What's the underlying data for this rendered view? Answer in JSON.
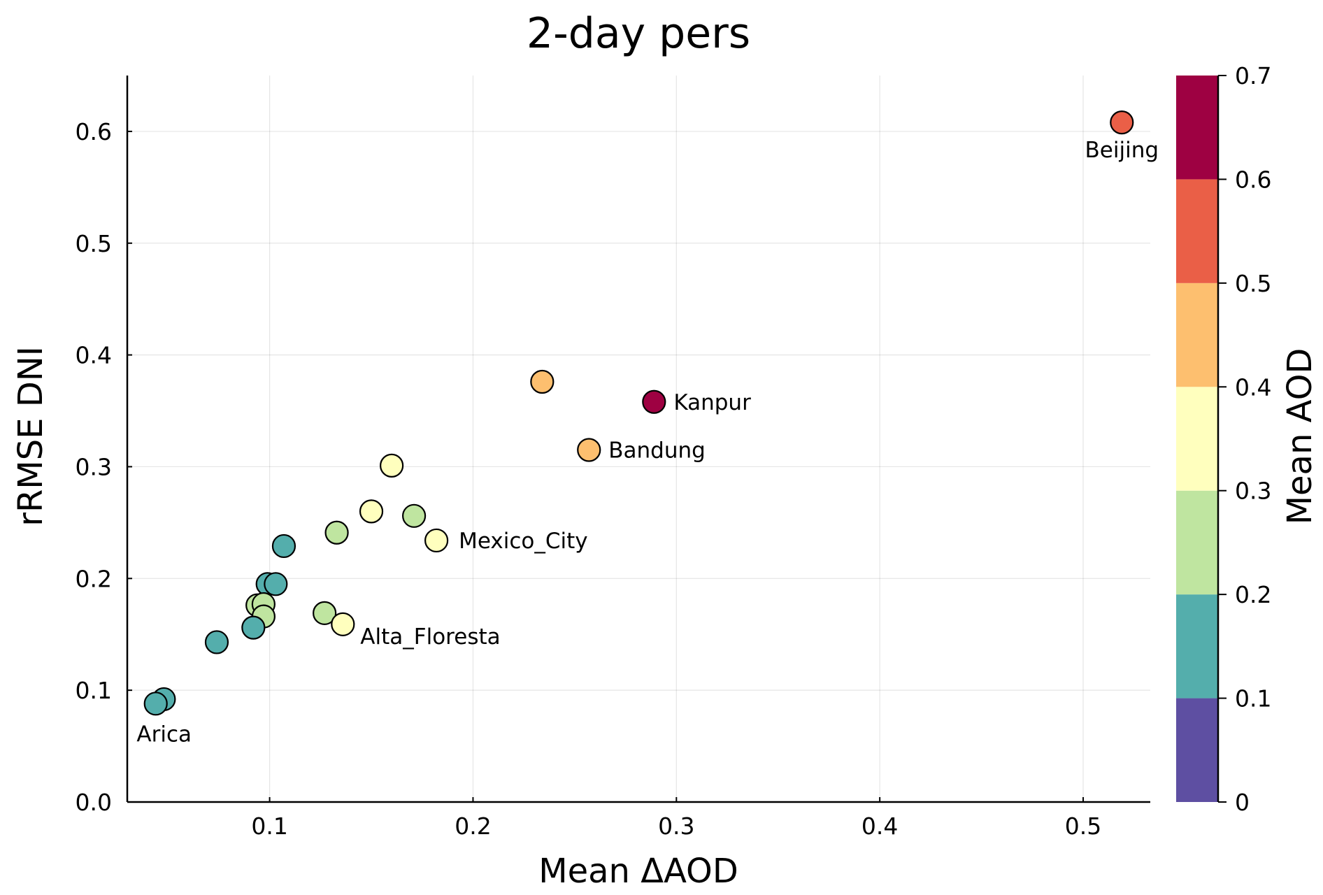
{
  "chart_data": {
    "type": "scatter",
    "title": "2-day pers",
    "xlabel": "Mean ΔAOD",
    "ylabel": "rRMSE DNI",
    "xlim": [
      0.03,
      0.533
    ],
    "ylim": [
      0.0,
      0.65
    ],
    "x_ticks": [
      0.1,
      0.2,
      0.3,
      0.4,
      0.5
    ],
    "x_tick_labels": [
      "0.1",
      "0.2",
      "0.3",
      "0.4",
      "0.5"
    ],
    "y_ticks": [
      0.0,
      0.1,
      0.2,
      0.3,
      0.4,
      0.5,
      0.6
    ],
    "y_tick_labels": [
      "0.0",
      "0.1",
      "0.2",
      "0.3",
      "0.4",
      "0.5",
      "0.6"
    ],
    "grid": true,
    "colorbar": {
      "label": "Mean AOD",
      "range": [
        0,
        0.7
      ],
      "ticks": [
        0,
        0.1,
        0.2,
        0.3,
        0.4,
        0.5,
        0.6,
        0.7
      ],
      "tick_labels": [
        "0",
        "0.1",
        "0.2",
        "0.3",
        "0.4",
        "0.5",
        "0.6",
        "0.7"
      ],
      "colors": [
        "#5e4fa2",
        "#54aeac",
        "#bfe5a0",
        "#ffffbe",
        "#fdbf6f",
        "#ea5f47",
        "#9e0142"
      ]
    },
    "points": [
      {
        "x": 0.519,
        "y": 0.608,
        "aod": 0.55,
        "label": "Beijing"
      },
      {
        "x": 0.234,
        "y": 0.376,
        "aod": 0.45,
        "label": ""
      },
      {
        "x": 0.289,
        "y": 0.358,
        "aod": 0.65,
        "label": "Kanpur"
      },
      {
        "x": 0.257,
        "y": 0.315,
        "aod": 0.45,
        "label": "Bandung"
      },
      {
        "x": 0.16,
        "y": 0.301,
        "aod": 0.35,
        "label": ""
      },
      {
        "x": 0.15,
        "y": 0.26,
        "aod": 0.35,
        "label": ""
      },
      {
        "x": 0.171,
        "y": 0.256,
        "aod": 0.25,
        "label": ""
      },
      {
        "x": 0.133,
        "y": 0.241,
        "aod": 0.25,
        "label": ""
      },
      {
        "x": 0.182,
        "y": 0.234,
        "aod": 0.35,
        "label": "Mexico_City"
      },
      {
        "x": 0.107,
        "y": 0.229,
        "aod": 0.15,
        "label": ""
      },
      {
        "x": 0.099,
        "y": 0.195,
        "aod": 0.15,
        "label": ""
      },
      {
        "x": 0.103,
        "y": 0.195,
        "aod": 0.15,
        "label": ""
      },
      {
        "x": 0.094,
        "y": 0.176,
        "aod": 0.25,
        "label": ""
      },
      {
        "x": 0.097,
        "y": 0.177,
        "aod": 0.25,
        "label": ""
      },
      {
        "x": 0.097,
        "y": 0.166,
        "aod": 0.25,
        "label": ""
      },
      {
        "x": 0.127,
        "y": 0.169,
        "aod": 0.25,
        "label": ""
      },
      {
        "x": 0.136,
        "y": 0.159,
        "aod": 0.35,
        "label": "Alta_Floresta"
      },
      {
        "x": 0.092,
        "y": 0.156,
        "aod": 0.15,
        "label": ""
      },
      {
        "x": 0.074,
        "y": 0.143,
        "aod": 0.15,
        "label": ""
      },
      {
        "x": 0.048,
        "y": 0.092,
        "aod": 0.15,
        "label": ""
      },
      {
        "x": 0.044,
        "y": 0.088,
        "aod": 0.15,
        "label": "Arica"
      }
    ]
  }
}
